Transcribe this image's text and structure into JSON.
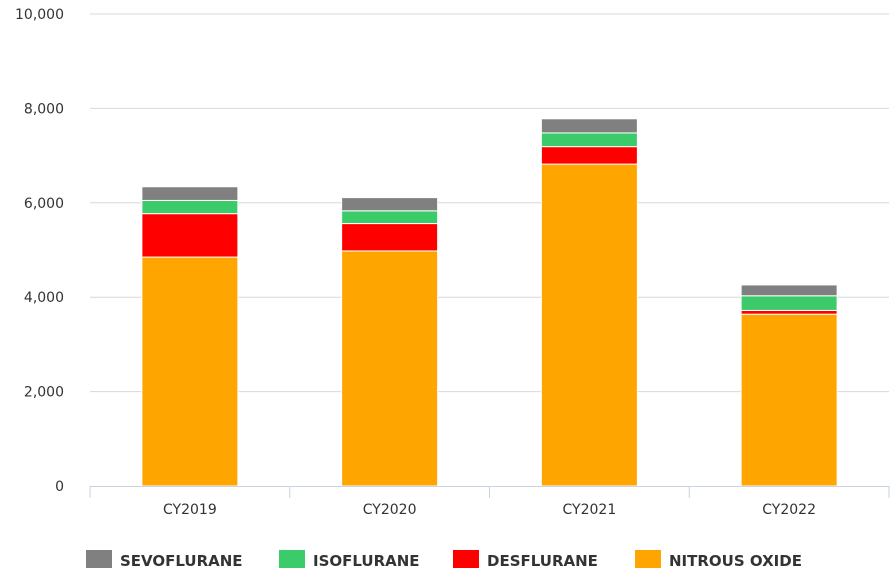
{
  "chart_data": {
    "type": "bar",
    "stacked": true,
    "categories": [
      "CY2019",
      "CY2020",
      "CY2021",
      "CY2022"
    ],
    "series": [
      {
        "name": "NITROUS OXIDE",
        "color": "#FFA500",
        "values": [
          4850,
          4980,
          6820,
          3640
        ]
      },
      {
        "name": "DESFLURANE",
        "color": "#FF0000",
        "values": [
          920,
          580,
          370,
          80
        ]
      },
      {
        "name": "ISOFLURANE",
        "color": "#3CCB6A",
        "values": [
          280,
          270,
          290,
          310
        ]
      },
      {
        "name": "SEVOFLURANE",
        "color": "#808080",
        "values": [
          290,
          280,
          300,
          230
        ]
      }
    ],
    "legend_order": [
      "SEVOFLURANE",
      "ISOFLURANE",
      "DESFLURANE",
      "NITROUS OXIDE"
    ],
    "y_ticks": [
      "0",
      "2,000",
      "4,000",
      "6,000",
      "8,000",
      "10,000"
    ],
    "y_tick_values": [
      0,
      2000,
      4000,
      6000,
      8000,
      10000
    ],
    "ylim": [
      0,
      10000
    ],
    "grid": true,
    "legend_position": "bottom",
    "title": "",
    "xlabel": "",
    "ylabel": ""
  }
}
